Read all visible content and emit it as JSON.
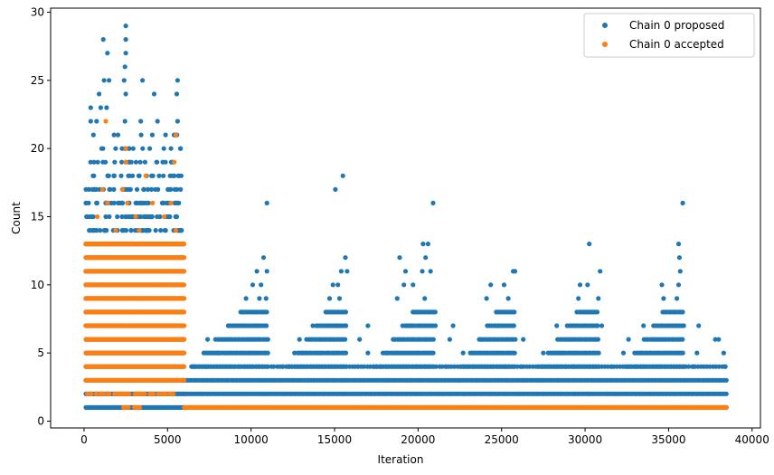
{
  "chart_data": {
    "type": "scatter",
    "title": "",
    "xlabel": "Iteration",
    "ylabel": "Count",
    "xlim": [
      -2000,
      40500
    ],
    "ylim": [
      -0.5,
      30.3
    ],
    "x_ticks": [
      0,
      5000,
      10000,
      15000,
      20000,
      25000,
      30000,
      35000,
      40000
    ],
    "y_ticks": [
      0,
      5,
      10,
      15,
      20,
      25,
      30
    ],
    "grid": false,
    "legend_position": "top-right",
    "series": [
      {
        "name": "Chain 0 proposed",
        "color": "#1f77b4",
        "description": "For iterations 0–6000 counts span 1–29 densely (1–13 nearly continuous); from 6000 to 38500 counts are mostly 1–4 with periodic bursts of higher counts peaking near 11000, 15600, 21000, 25700, 30800 and 35800.",
        "points": [
          [
            2500,
            29
          ],
          [
            1150,
            28
          ],
          [
            2500,
            28
          ],
          [
            1400,
            27
          ],
          [
            2500,
            27
          ],
          [
            2450,
            26
          ],
          [
            1200,
            25
          ],
          [
            1500,
            25
          ],
          [
            2400,
            25
          ],
          [
            3500,
            25
          ],
          [
            5600,
            25
          ],
          [
            900,
            24
          ],
          [
            2500,
            24
          ],
          [
            5550,
            24
          ],
          [
            4200,
            24
          ],
          [
            400,
            23
          ],
          [
            1000,
            23
          ],
          [
            1350,
            23
          ],
          [
            400,
            22
          ],
          [
            750,
            22
          ],
          [
            2450,
            22
          ],
          [
            3400,
            22
          ],
          [
            4400,
            22
          ],
          [
            5600,
            22
          ],
          [
            15500,
            18
          ],
          [
            15050,
            17
          ],
          [
            10950,
            16
          ],
          [
            20900,
            16
          ],
          [
            35850,
            16
          ],
          [
            20600,
            13
          ],
          [
            20300,
            13
          ],
          [
            30250,
            13
          ],
          [
            35600,
            13
          ],
          [
            10750,
            12
          ],
          [
            15650,
            12
          ],
          [
            18900,
            12
          ],
          [
            20450,
            12
          ],
          [
            35650,
            12
          ],
          [
            10350,
            11
          ],
          [
            10950,
            11
          ],
          [
            15400,
            11
          ],
          [
            15750,
            11
          ],
          [
            19250,
            11
          ],
          [
            20250,
            11
          ],
          [
            20750,
            11
          ],
          [
            25700,
            11
          ],
          [
            25800,
            11
          ],
          [
            30900,
            11
          ],
          [
            35700,
            11
          ],
          [
            10100,
            10
          ],
          [
            10600,
            10
          ],
          [
            14900,
            10
          ],
          [
            15200,
            10
          ],
          [
            19150,
            10
          ],
          [
            19700,
            10
          ],
          [
            24350,
            10
          ],
          [
            25150,
            10
          ],
          [
            29700,
            10
          ],
          [
            30150,
            10
          ],
          [
            34600,
            10
          ],
          [
            35600,
            10
          ],
          [
            9700,
            9
          ],
          [
            10500,
            9
          ],
          [
            10900,
            9
          ],
          [
            14700,
            9
          ],
          [
            15300,
            9
          ],
          [
            18750,
            9
          ],
          [
            20400,
            9
          ],
          [
            24100,
            9
          ],
          [
            25400,
            9
          ],
          [
            29600,
            9
          ],
          [
            30800,
            9
          ],
          [
            34700,
            9
          ],
          [
            35500,
            9
          ],
          [
            13700,
            7
          ],
          [
            15100,
            7
          ],
          [
            17000,
            7
          ],
          [
            19500,
            7
          ],
          [
            22100,
            7
          ],
          [
            24800,
            7
          ],
          [
            28300,
            7
          ],
          [
            31000,
            7
          ],
          [
            33500,
            7
          ],
          [
            36800,
            7
          ],
          [
            7400,
            6
          ],
          [
            12900,
            6
          ],
          [
            16500,
            6
          ],
          [
            21900,
            6
          ],
          [
            26300,
            6
          ],
          [
            32600,
            6
          ],
          [
            37800,
            6
          ],
          [
            38000,
            6
          ],
          [
            8000,
            5
          ],
          [
            12600,
            5
          ],
          [
            17000,
            5
          ],
          [
            22700,
            5
          ],
          [
            27500,
            5
          ],
          [
            28500,
            5
          ],
          [
            32300,
            5
          ],
          [
            36700,
            5
          ],
          [
            38300,
            5
          ],
          [
            6600,
            4
          ],
          [
            7300,
            4
          ],
          [
            11900,
            4
          ],
          [
            16400,
            4
          ],
          [
            21700,
            4
          ],
          [
            26200,
            4
          ],
          [
            31600,
            4
          ],
          [
            36500,
            4
          ],
          [
            38400,
            4
          ]
        ]
      },
      {
        "name": "Chain 0 accepted",
        "color": "#ff7f0e",
        "description": "Accepted points are concentrated at iterations 0–6000 with counts 1–22; beyond 6000 nearly all accepted points lie at count 1 up to iteration 38500.",
        "points": [
          [
            1300,
            22
          ],
          [
            2500,
            20
          ],
          [
            5500,
            21
          ],
          [
            2500,
            19
          ],
          [
            3700,
            18
          ],
          [
            5400,
            19
          ],
          [
            1100,
            17
          ],
          [
            2300,
            17
          ],
          [
            1400,
            16
          ],
          [
            2600,
            16
          ],
          [
            4100,
            16
          ],
          [
            5200,
            16
          ],
          [
            800,
            15
          ],
          [
            3100,
            15
          ],
          [
            4800,
            15
          ],
          [
            1900,
            14
          ],
          [
            3300,
            14
          ],
          [
            5500,
            14
          ],
          [
            1000,
            2
          ],
          [
            2700,
            2
          ],
          [
            3100,
            1
          ]
        ]
      }
    ]
  }
}
